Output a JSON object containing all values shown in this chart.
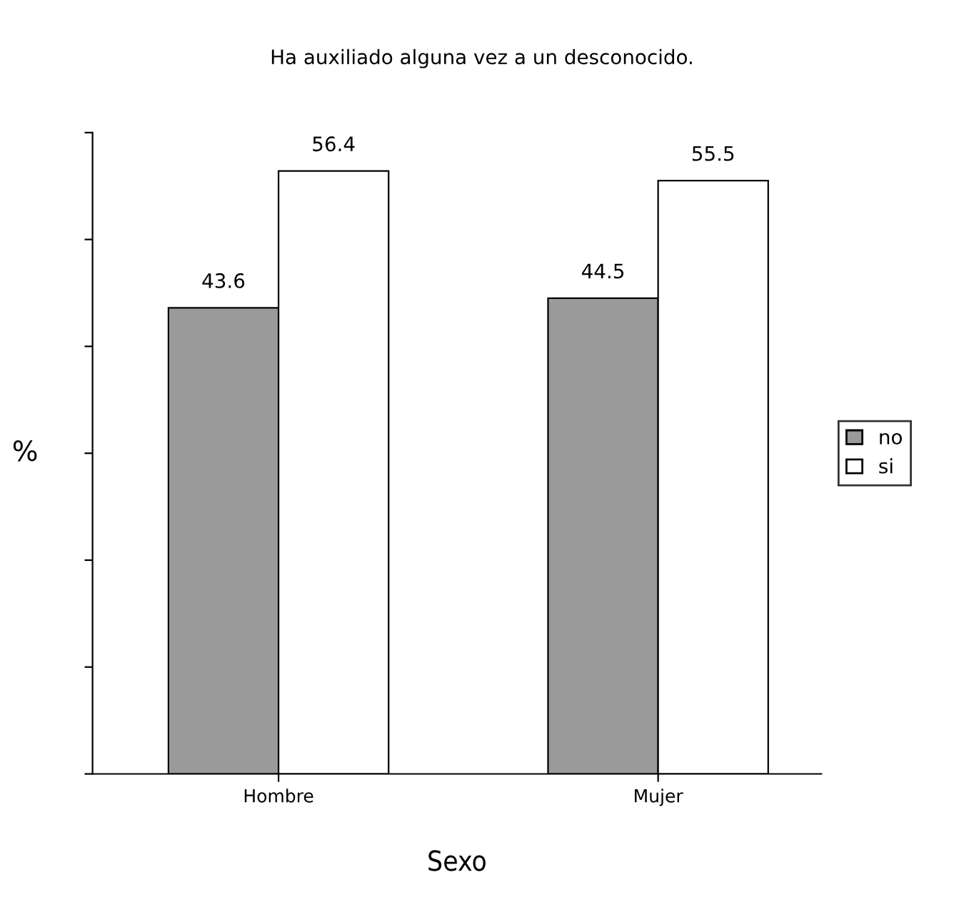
{
  "chart_data": {
    "type": "bar",
    "title": "Ha auxiliado alguna vez a un desconocido.",
    "xlabel": "Sexo",
    "ylabel": "%",
    "categories": [
      "Hombre",
      "Mujer"
    ],
    "series": [
      {
        "name": "no",
        "color": "#9a9a9a",
        "values": [
          43.6,
          44.5
        ]
      },
      {
        "name": "si",
        "color": "#ffffff",
        "values": [
          56.4,
          55.5
        ]
      }
    ],
    "ylim": [
      0,
      60
    ],
    "yticks": [
      {
        "value": 0,
        "label": null
      },
      {
        "value": 10,
        "label": null
      },
      {
        "value": 20,
        "label": null
      },
      {
        "value": 30,
        "label": null
      },
      {
        "value": 40,
        "label": null
      },
      {
        "value": 50,
        "label": null
      },
      {
        "value": 60,
        "label": null
      }
    ],
    "tick_labels": "x",
    "data_labels": true,
    "legend": "right",
    "grid": false
  }
}
